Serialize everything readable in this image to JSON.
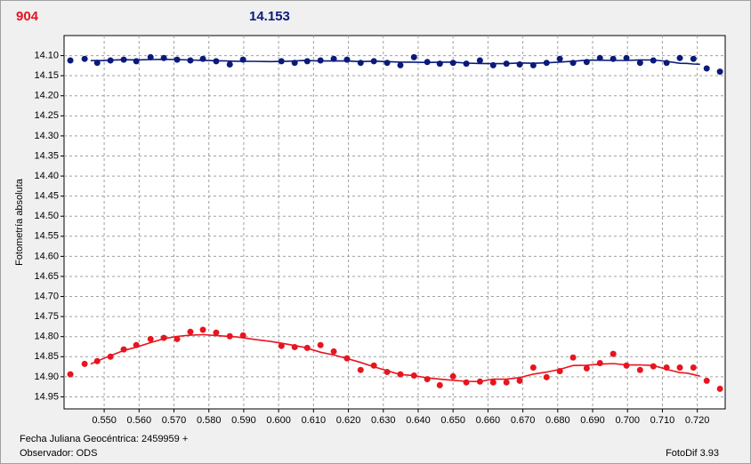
{
  "chart_data": {
    "type": "scatter",
    "title_left": "904",
    "title_right": "14.153",
    "ylabel": "Fotometría absoluta",
    "footer_left": "Fecha Juliana Geocéntrica: 2459959 +",
    "footer_observer": "Observador: ODS",
    "footer_right": "FotoDif 3.93",
    "xlim": [
      0.5385,
      0.728
    ],
    "ylim": [
      14.05,
      14.98
    ],
    "y_inverted": true,
    "grid": true,
    "xticks": [
      {
        "value": 0.55,
        "label": "0.550"
      },
      {
        "value": 0.56,
        "label": "0.560"
      },
      {
        "value": 0.57,
        "label": "0.570"
      },
      {
        "value": 0.58,
        "label": "0.580"
      },
      {
        "value": 0.59,
        "label": "0.590"
      },
      {
        "value": 0.6,
        "label": "0.600"
      },
      {
        "value": 0.61,
        "label": "0.610"
      },
      {
        "value": 0.62,
        "label": "0.620"
      },
      {
        "value": 0.63,
        "label": "0.630"
      },
      {
        "value": 0.64,
        "label": "0.640"
      },
      {
        "value": 0.65,
        "label": "0.650"
      },
      {
        "value": 0.66,
        "label": "0.660"
      },
      {
        "value": 0.67,
        "label": "0.670"
      },
      {
        "value": 0.68,
        "label": "0.680"
      },
      {
        "value": 0.69,
        "label": "0.690"
      },
      {
        "value": 0.7,
        "label": "0.700"
      },
      {
        "value": 0.71,
        "label": "0.710"
      },
      {
        "value": 0.72,
        "label": "0.720"
      }
    ],
    "yticks": [
      {
        "value": 14.1,
        "label": "14.10"
      },
      14.15,
      {
        "value": 14.2,
        "label": "14.20"
      },
      14.25,
      {
        "value": 14.3,
        "label": "14.30"
      },
      14.35,
      {
        "value": 14.4,
        "label": "14.40"
      },
      14.45,
      {
        "value": 14.5,
        "label": "14.50"
      },
      14.55,
      {
        "value": 14.6,
        "label": "14.60"
      },
      14.65,
      {
        "value": 14.7,
        "label": "14.70"
      },
      14.75,
      {
        "value": 14.8,
        "label": "14.80"
      },
      14.85,
      {
        "value": 14.9,
        "label": "14.90"
      },
      14.95
    ],
    "x": [
      0.5403,
      0.5444,
      0.548,
      0.5518,
      0.5556,
      0.5592,
      0.5633,
      0.5671,
      0.5709,
      0.5747,
      0.5783,
      0.5821,
      0.586,
      0.5898,
      0.6008,
      0.6046,
      0.6082,
      0.612,
      0.6158,
      0.6196,
      0.6235,
      0.6273,
      0.6311,
      0.6349,
      0.6388,
      0.6426,
      0.6462,
      0.65,
      0.6538,
      0.6577,
      0.6615,
      0.6653,
      0.6691,
      0.673,
      0.6768,
      0.6806,
      0.6844,
      0.6883,
      0.6921,
      0.6959,
      0.6997,
      0.7036,
      0.7074,
      0.7112,
      0.715,
      0.7189,
      0.7227,
      0.7265
    ],
    "series": [
      {
        "color": "#0a1a7a",
        "trend": "smooth",
        "values": [
          14.112,
          14.108,
          14.118,
          14.112,
          14.11,
          14.114,
          14.104,
          14.106,
          14.11,
          14.112,
          14.108,
          14.114,
          14.122,
          14.11,
          14.114,
          14.118,
          14.114,
          14.112,
          14.108,
          14.11,
          14.118,
          14.114,
          14.118,
          14.124,
          14.104,
          14.116,
          14.12,
          14.118,
          14.12,
          14.112,
          14.124,
          14.12,
          14.122,
          14.124,
          14.118,
          14.108,
          14.118,
          14.116,
          14.106,
          14.108,
          14.106,
          14.118,
          14.112,
          14.118,
          14.106,
          14.108,
          14.132,
          14.14
        ]
      },
      {
        "color": "#e8141e",
        "trend": "smooth",
        "values": [
          14.894,
          14.868,
          14.861,
          14.85,
          14.832,
          14.821,
          14.806,
          14.803,
          14.806,
          14.788,
          14.783,
          14.79,
          14.799,
          14.797,
          14.823,
          14.826,
          14.828,
          14.821,
          14.837,
          14.854,
          14.883,
          14.872,
          14.888,
          14.894,
          14.897,
          14.906,
          14.921,
          14.899,
          14.914,
          14.912,
          14.914,
          14.914,
          14.91,
          14.877,
          14.901,
          14.886,
          14.852,
          14.879,
          14.866,
          14.843,
          14.872,
          14.883,
          14.874,
          14.877,
          14.877,
          14.877,
          14.91,
          14.93
        ]
      }
    ]
  }
}
